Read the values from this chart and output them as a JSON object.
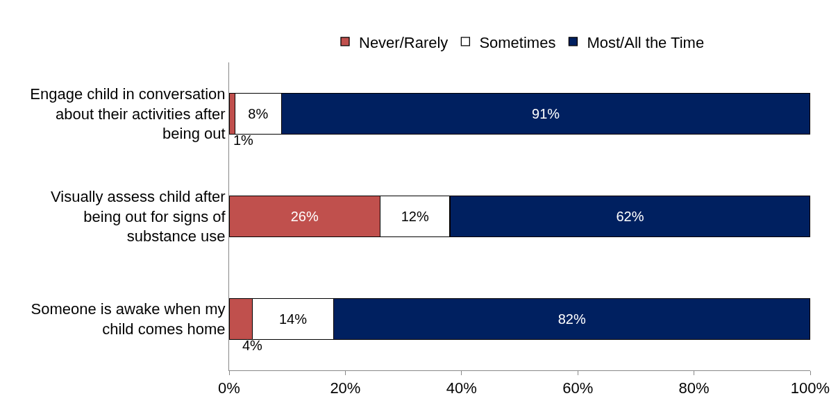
{
  "chart_data": {
    "type": "bar",
    "orientation": "horizontal",
    "stacked": true,
    "categories": [
      "Engage child in conversation about their activities after being out",
      "Visually assess child after being out for signs of substance use",
      "Someone is awake when my child comes home"
    ],
    "series": [
      {
        "name": "Never/Rarely",
        "color": "#c0504d",
        "values": [
          1,
          26,
          4
        ],
        "value_labels": [
          "1%",
          "26%",
          "4%"
        ]
      },
      {
        "name": "Sometimes",
        "color": "#ffffff",
        "values": [
          8,
          12,
          14
        ],
        "value_labels": [
          "8%",
          "12%",
          "14%"
        ]
      },
      {
        "name": "Most/All the Time",
        "color": "#002060",
        "values": [
          91,
          62,
          82
        ],
        "value_labels": [
          "91%",
          "62%",
          "82%"
        ]
      }
    ],
    "xlim": [
      0,
      100
    ],
    "xticks": [
      {
        "value": 0,
        "label": "0%"
      },
      {
        "value": 20,
        "label": "20%"
      },
      {
        "value": 40,
        "label": "40%"
      },
      {
        "value": 60,
        "label": "60%"
      },
      {
        "value": 80,
        "label": "80%"
      },
      {
        "value": 100,
        "label": "100%"
      }
    ],
    "grid": false,
    "legend": "top"
  }
}
